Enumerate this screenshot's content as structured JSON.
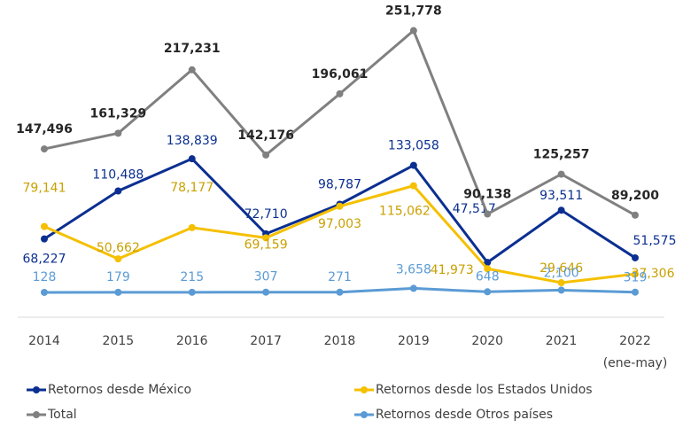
{
  "chart_data": {
    "type": "line",
    "categories": [
      "2014",
      "2015",
      "2016",
      "2017",
      "2018",
      "2019",
      "2020",
      "2021",
      "2022"
    ],
    "annotations": [
      "(ene-may)"
    ],
    "ylim": [
      0,
      260000
    ],
    "y2lim": [
      -21000,
      239000
    ],
    "legend": "bottom",
    "series": [
      {
        "name": "Retornos desde México",
        "color": "#0b2f91",
        "values": [
          68227,
          110488,
          138839,
          72710,
          98787,
          133058,
          47517,
          93511,
          51575
        ],
        "value_labels": [
          "68,227",
          "110,488",
          "138,839",
          "72,710",
          "98,787",
          "133,058",
          "47,517",
          "93,511",
          "51,575"
        ]
      },
      {
        "name": "Retornos desde los Estados Unidos",
        "color": "#f5c000",
        "values": [
          79141,
          50662,
          78177,
          69159,
          97003,
          115062,
          41973,
          29646,
          37306
        ],
        "value_labels": [
          "79,141",
          "50,662",
          "78,177",
          "69,159",
          "97,003",
          "115,062",
          "41,973",
          "29,646",
          "37,306"
        ]
      },
      {
        "name": "Total",
        "color": "#808080",
        "values": [
          147496,
          161329,
          217231,
          142176,
          196061,
          251778,
          90138,
          125257,
          89200
        ],
        "value_labels": [
          "147,496",
          "161,329",
          "217,231",
          "142,176",
          "196,061",
          "251,778",
          "90,138",
          "125,257",
          "89,200"
        ]
      },
      {
        "name": "Retornos desde Otros países",
        "color": "#5b9bd5",
        "axis": "y2",
        "values": [
          128,
          179,
          215,
          307,
          271,
          3658,
          648,
          2100,
          319
        ],
        "value_labels": [
          "128",
          "179",
          "215",
          "307",
          "271",
          "3,658",
          "648",
          "2,100",
          "319"
        ]
      }
    ]
  }
}
